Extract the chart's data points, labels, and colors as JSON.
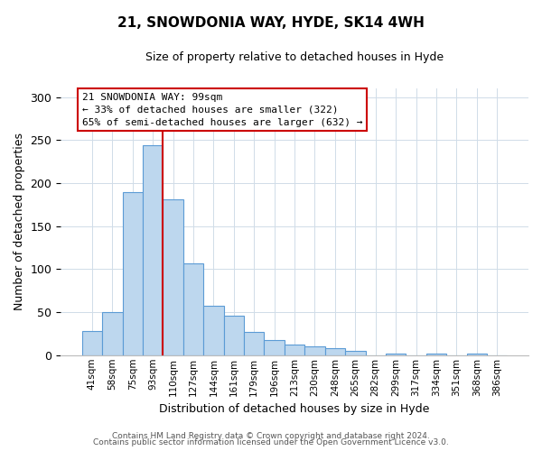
{
  "title": "21, SNOWDONIA WAY, HYDE, SK14 4WH",
  "subtitle": "Size of property relative to detached houses in Hyde",
  "xlabel": "Distribution of detached houses by size in Hyde",
  "ylabel": "Number of detached properties",
  "bar_labels": [
    "41sqm",
    "58sqm",
    "75sqm",
    "93sqm",
    "110sqm",
    "127sqm",
    "144sqm",
    "161sqm",
    "179sqm",
    "196sqm",
    "213sqm",
    "230sqm",
    "248sqm",
    "265sqm",
    "282sqm",
    "299sqm",
    "317sqm",
    "334sqm",
    "351sqm",
    "368sqm",
    "386sqm"
  ],
  "bar_values": [
    28,
    50,
    190,
    244,
    181,
    107,
    57,
    46,
    27,
    18,
    12,
    10,
    8,
    5,
    0,
    2,
    0,
    2,
    0,
    2,
    0
  ],
  "bar_color": "#bdd7ee",
  "bar_edge_color": "#5b9bd5",
  "vline_x_idx": 4,
  "vline_color": "#cc0000",
  "annotation_title": "21 SNOWDONIA WAY: 99sqm",
  "annotation_line1": "← 33% of detached houses are smaller (322)",
  "annotation_line2": "65% of semi-detached houses are larger (632) →",
  "annotation_box_color": "#ffffff",
  "annotation_box_edge": "#cc0000",
  "ylim": [
    0,
    310
  ],
  "yticks": [
    0,
    50,
    100,
    150,
    200,
    250,
    300
  ],
  "footer1": "Contains HM Land Registry data © Crown copyright and database right 2024.",
  "footer2": "Contains public sector information licensed under the Open Government Licence v3.0.",
  "bg_color": "#ffffff",
  "grid_color": "#d0dce8"
}
